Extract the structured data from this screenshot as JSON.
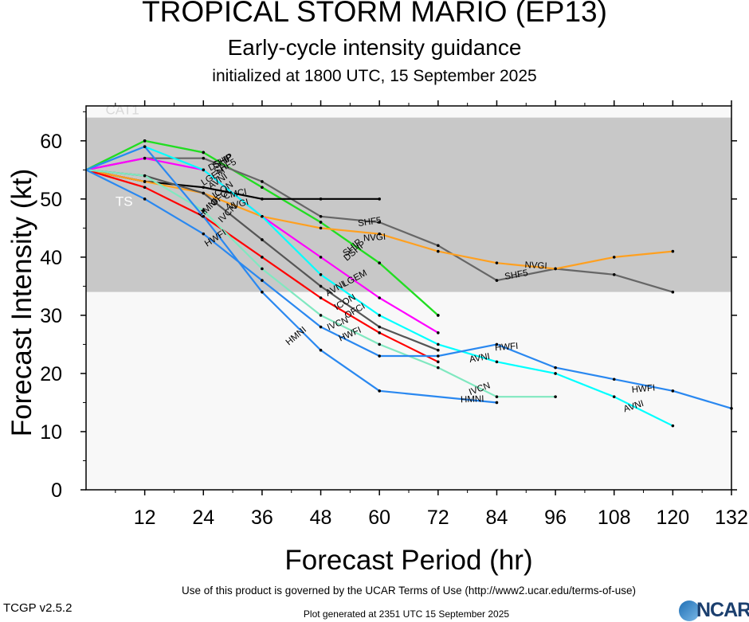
{
  "header": {
    "title": "TROPICAL STORM MARIO (EP13)",
    "subtitle": "Early-cycle intensity guidance",
    "initialized": "initialized at 1800 UTC, 15 September 2025"
  },
  "footer": {
    "terms": "Use of this product is governed by the UCAR Terms of Use (http://www2.ucar.edu/terms-of-use)",
    "version": "TCGP v2.5.2",
    "generated": "Plot generated at 2351 UTC   15 September 2025",
    "logo": "NCAR"
  },
  "chart_data": {
    "type": "line",
    "xlabel": "Forecast Period (hr)",
    "ylabel": "Forecast Intensity (kt)",
    "xlim": [
      0,
      132
    ],
    "ylim": [
      0,
      66
    ],
    "xticks": [
      12,
      24,
      36,
      48,
      60,
      72,
      84,
      96,
      108,
      120,
      132
    ],
    "yticks": [
      0,
      10,
      20,
      30,
      40,
      50,
      60
    ],
    "bands": [
      {
        "label": "CAT1",
        "from": 64,
        "to": 66,
        "color": "#f8f8f8"
      },
      {
        "label": "",
        "from": 34,
        "to": 64,
        "color": "#c8c8c8"
      },
      {
        "label": "TS",
        "from": 0,
        "to": 34,
        "color": "#f8f8f8"
      }
    ],
    "series": [
      {
        "name": "SHIP",
        "color": "#22dd22",
        "x": [
          0,
          12,
          24,
          36,
          48,
          60,
          72
        ],
        "y": [
          55,
          60,
          58,
          52,
          46,
          39,
          30
        ]
      },
      {
        "name": "DSHP",
        "color": "#22dd22",
        "x": [
          0,
          12,
          24,
          36,
          48,
          60,
          72
        ],
        "y": [
          55,
          60,
          58,
          52,
          46,
          39,
          30
        ]
      },
      {
        "name": "SHF5",
        "color": "#666666",
        "x": [
          0,
          12,
          24,
          36,
          48,
          60,
          72,
          84,
          96,
          108,
          120
        ],
        "y": [
          55,
          57,
          57,
          53,
          47,
          46,
          42,
          36,
          38,
          37,
          34
        ]
      },
      {
        "name": "CMCI",
        "color": "#000000",
        "x": [
          0,
          12,
          24,
          36,
          48,
          60
        ],
        "y": [
          55,
          53,
          52,
          50,
          50,
          50
        ]
      },
      {
        "name": "NVGI",
        "color": "#ffa020",
        "x": [
          0,
          12,
          24,
          36,
          48,
          60,
          72,
          84,
          96,
          108,
          120
        ],
        "y": [
          55,
          53,
          51,
          47,
          45,
          44,
          41,
          39,
          38,
          40,
          41
        ]
      },
      {
        "name": "LGEM",
        "color": "#ff00ff",
        "x": [
          0,
          12,
          24,
          36,
          48,
          60,
          72
        ],
        "y": [
          55,
          57,
          55,
          47,
          40,
          33,
          27
        ]
      },
      {
        "name": "AVNI",
        "color": "#00ffff",
        "x": [
          0,
          12,
          24,
          36,
          48,
          60,
          72,
          84,
          96,
          108,
          120
        ],
        "y": [
          55,
          59,
          55,
          47,
          37,
          30,
          25,
          22,
          20,
          16,
          11
        ]
      },
      {
        "name": "ICON",
        "color": "#555555",
        "x": [
          0,
          12,
          24,
          36,
          48,
          60,
          72
        ],
        "y": [
          55,
          54,
          51,
          43,
          35,
          28,
          24
        ]
      },
      {
        "name": "OFCI",
        "color": "#ff0000",
        "x": [
          0,
          12,
          24,
          36,
          48,
          60,
          72
        ],
        "y": [
          55,
          52,
          47,
          40,
          33,
          27,
          22
        ]
      },
      {
        "name": "IVCN",
        "color": "#80e8c0",
        "x": [
          0,
          12,
          24,
          36,
          48,
          60,
          72,
          84,
          96
        ],
        "y": [
          55,
          54,
          48,
          38,
          30,
          25,
          21,
          16,
          16
        ]
      },
      {
        "name": "HWFI",
        "color": "#2a88f0",
        "x": [
          0,
          12,
          24,
          36,
          48,
          60,
          72,
          84,
          96,
          108,
          120,
          132
        ],
        "y": [
          55,
          50,
          44,
          36,
          28,
          23,
          23,
          25,
          21,
          19,
          17,
          14
        ]
      },
      {
        "name": "HMNI",
        "color": "#2a88f0",
        "x": [
          0,
          12,
          24,
          36,
          48,
          60,
          84
        ],
        "y": [
          55,
          59,
          47,
          34,
          24,
          17,
          15
        ]
      }
    ],
    "labels": [
      {
        "text": "CAT1",
        "x": 4,
        "y": 65.2,
        "color": "#d8d8d8",
        "angle": 0
      },
      {
        "text": "TS",
        "x": 6,
        "y": 49.4,
        "color": "#ffffff",
        "angle": 0
      },
      {
        "text": "SHIP",
        "x": 28,
        "y": 56.5,
        "color": "#000000",
        "angle": -28
      },
      {
        "text": "SHF5",
        "x": 28.5,
        "y": 55.5,
        "color": "#000000",
        "angle": -28
      },
      {
        "text": "DSHP",
        "x": 27.5,
        "y": 56.2,
        "color": "#000000",
        "angle": -28
      },
      {
        "text": "LGEM",
        "x": 26,
        "y": 53.8,
        "color": "#000000",
        "angle": -32
      },
      {
        "text": "CMCI",
        "x": 30.5,
        "y": 50.8,
        "color": "#000000",
        "angle": -12
      },
      {
        "text": "AVNI",
        "x": 27,
        "y": 53,
        "color": "#000000",
        "angle": -34
      },
      {
        "text": "ICON",
        "x": 28,
        "y": 51.5,
        "color": "#000000",
        "angle": -34
      },
      {
        "text": "NVGI",
        "x": 31,
        "y": 49,
        "color": "#000000",
        "angle": -14
      },
      {
        "text": "OFCI",
        "x": 27.5,
        "y": 50.2,
        "color": "#000000",
        "angle": -40
      },
      {
        "text": "HMNI",
        "x": 25,
        "y": 48.4,
        "color": "#000000",
        "angle": -45
      },
      {
        "text": "IVCN",
        "x": 29,
        "y": 47.5,
        "color": "#000000",
        "angle": -45
      },
      {
        "text": "HWFI",
        "x": 26.5,
        "y": 43.2,
        "color": "#000000",
        "angle": -33
      },
      {
        "text": "SHF5",
        "x": 58,
        "y": 46,
        "color": "#000000",
        "angle": -8
      },
      {
        "text": "NVGI",
        "x": 59,
        "y": 43.3,
        "color": "#000000",
        "angle": -4
      },
      {
        "text": "SHIP",
        "x": 54.5,
        "y": 41.6,
        "color": "#000000",
        "angle": -40
      },
      {
        "text": "DSHP",
        "x": 55,
        "y": 41,
        "color": "#000000",
        "angle": -40
      },
      {
        "text": "LGEM",
        "x": 55,
        "y": 36.3,
        "color": "#000000",
        "angle": -28
      },
      {
        "text": "AVNI",
        "x": 51,
        "y": 34.5,
        "color": "#000000",
        "angle": -30
      },
      {
        "text": "ICON",
        "x": 53,
        "y": 32.2,
        "color": "#000000",
        "angle": -30
      },
      {
        "text": "OFCI",
        "x": 55,
        "y": 30.7,
        "color": "#000000",
        "angle": -30
      },
      {
        "text": "IVCN",
        "x": 51.5,
        "y": 28.5,
        "color": "#000000",
        "angle": -22
      },
      {
        "text": "HWFI",
        "x": 54,
        "y": 26.7,
        "color": "#000000",
        "angle": -24
      },
      {
        "text": "HMNI",
        "x": 43,
        "y": 26.4,
        "color": "#000000",
        "angle": -40
      },
      {
        "text": "HMNI",
        "x": 79,
        "y": 15.5,
        "color": "#000000",
        "angle": -2
      },
      {
        "text": "IVCN",
        "x": 80.5,
        "y": 17.3,
        "color": "#000000",
        "angle": -20
      },
      {
        "text": "AVNI",
        "x": 80.5,
        "y": 22.6,
        "color": "#000000",
        "angle": -10
      },
      {
        "text": "HWFI",
        "x": 86,
        "y": 24.5,
        "color": "#000000",
        "angle": -5
      },
      {
        "text": "SHF5",
        "x": 88,
        "y": 36.9,
        "color": "#000000",
        "angle": -10
      },
      {
        "text": "NVGI",
        "x": 92,
        "y": 38.5,
        "color": "#000000",
        "angle": 3
      },
      {
        "text": "HWFI",
        "x": 114,
        "y": 17.3,
        "color": "#000000",
        "angle": -5
      },
      {
        "text": "AVNI",
        "x": 112,
        "y": 14.3,
        "color": "#000000",
        "angle": -18
      }
    ]
  }
}
